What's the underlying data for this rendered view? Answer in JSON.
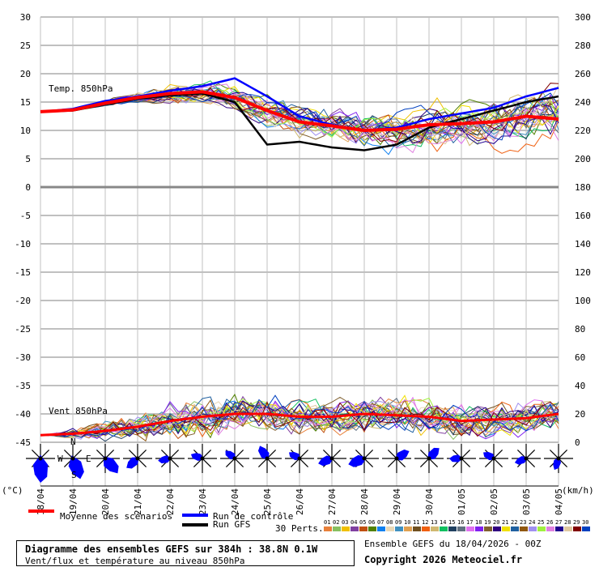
{
  "chart_data": {
    "type": "line",
    "title": "Diagramme des ensembles GEFS sur 384h : 38.8N 0.1W",
    "subtitle": "Vent/flux et température au niveau 850hPa",
    "run_info": "Ensemble GEFS du 18/04/2026 - 00Z",
    "copyright": "Copyright 2026 Meteociel.fr",
    "x_ticks": [
      "18/04",
      "19/04",
      "20/04",
      "21/04",
      "22/04",
      "23/04",
      "24/04",
      "25/04",
      "26/04",
      "27/04",
      "28/04",
      "29/04",
      "30/04",
      "01/05",
      "02/05",
      "03/05",
      "04/05"
    ],
    "left_ticks": [
      "30",
      "25",
      "20",
      "15",
      "10",
      "5",
      "0",
      "-5",
      "-10",
      "-15",
      "-20",
      "-25",
      "-30",
      "-35",
      "-40",
      "-45"
    ],
    "right_ticks": [
      "300",
      "280",
      "260",
      "240",
      "220",
      "200",
      "180",
      "160",
      "140",
      "120",
      "100",
      "80",
      "60",
      "40",
      "20",
      "0"
    ],
    "left_unit": "(°C)",
    "right_unit": "(km/h)",
    "temp_label": "Temp. 850hPa",
    "wind_label": "Vent 850hPa",
    "temp_range": [
      0,
      30
    ],
    "wind_range": [
      0,
      300
    ],
    "temp_mean_daily": [
      13.3,
      13.6,
      14.8,
      15.8,
      16.5,
      16.8,
      15.8,
      13.5,
      11.5,
      10.8,
      10.0,
      10.2,
      11.0,
      11.2,
      11.5,
      12.5,
      12.0
    ],
    "temp_control_daily": [
      13.3,
      13.8,
      15.2,
      16.0,
      17.0,
      17.8,
      19.2,
      16.0,
      12.5,
      11.0,
      10.0,
      10.5,
      12.0,
      13.0,
      14.0,
      16.0,
      17.5
    ],
    "temp_gfs_daily": [
      13.3,
      13.5,
      14.6,
      15.6,
      16.2,
      16.5,
      15.0,
      7.5,
      8.0,
      7.0,
      6.5,
      7.5,
      10.5,
      12.0,
      13.5,
      15.0,
      16.0
    ],
    "wind_mean_daily": [
      5,
      6,
      8,
      11,
      15,
      18,
      20,
      20,
      18,
      18,
      20,
      19,
      18,
      15,
      16,
      17,
      20
    ],
    "wind_rose_direction_deg": [
      180,
      160,
      140,
      230,
      260,
      290,
      310,
      330,
      300,
      250,
      250,
      60,
      45,
      270,
      300,
      250,
      200
    ],
    "wind_rose_strength": [
      1.0,
      0.9,
      0.8,
      0.6,
      0.5,
      0.5,
      0.5,
      0.6,
      0.5,
      0.6,
      0.7,
      0.6,
      0.6,
      0.5,
      0.5,
      0.5,
      0.5
    ],
    "compass": {
      "n": "N",
      "w": "W",
      "e": "E",
      "s": "S"
    },
    "members": 30,
    "legend": {
      "mean": "Moyenne des scénarios",
      "control": "Run de contrôle",
      "gfs": "Run GFS",
      "perts": "30 Perts."
    },
    "member_ids": [
      "01",
      "02",
      "03",
      "04",
      "05",
      "06",
      "07",
      "08",
      "09",
      "10",
      "11",
      "12",
      "13",
      "14",
      "15",
      "16",
      "17",
      "18",
      "19",
      "20",
      "21",
      "22",
      "23",
      "24",
      "25",
      "26",
      "27",
      "28",
      "29",
      "30"
    ],
    "member_colors": [
      "#e8803a",
      "#88c060",
      "#f0c000",
      "#8040a0",
      "#c05010",
      "#508000",
      "#1080f0",
      "#e8d8b8",
      "#4090c0",
      "#e0a050",
      "#705020",
      "#f06010",
      "#d0b870",
      "#10c060",
      "#204060",
      "#607080",
      "#e070f0",
      "#8020f0",
      "#806030",
      "#300080",
      "#f0e000",
      "#2060a0",
      "#905810",
      "#a090f0",
      "#a0f040",
      "#e080e0",
      "#200090",
      "#e0c8a0",
      "#800000",
      "#0040c0"
    ],
    "colors": {
      "mean": "#ff0000",
      "control": "#0000ff",
      "gfs": "#000000",
      "grid": "#c0c0c0",
      "rose": "#0000ff"
    }
  }
}
